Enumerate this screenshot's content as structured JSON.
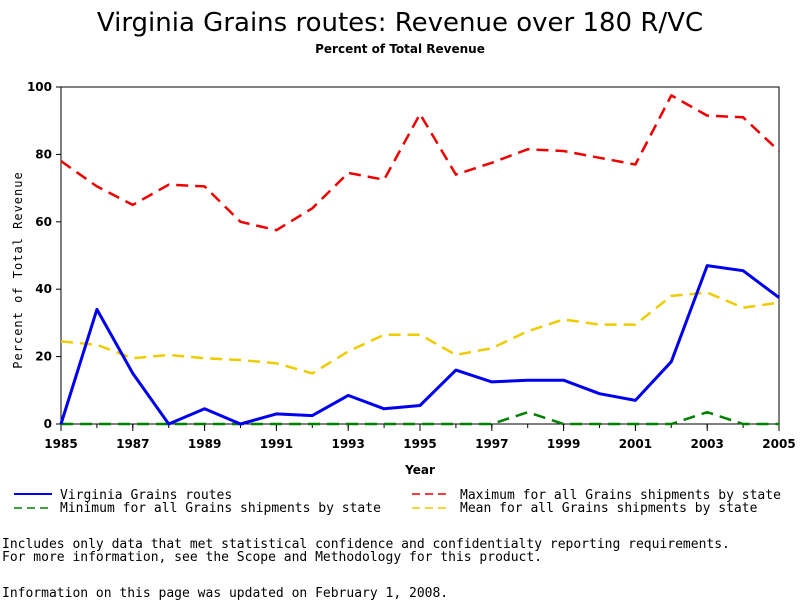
{
  "chart_data": {
    "type": "line",
    "title": "Virginia Grains routes: Revenue over 180 R/VC",
    "subtitle": "Percent of Total Revenue",
    "xlabel": "Year",
    "ylabel": "Percent of Total Revenue",
    "xlim": [
      1985,
      2005
    ],
    "ylim": [
      0,
      100
    ],
    "x": [
      1985,
      1986,
      1987,
      1988,
      1989,
      1990,
      1991,
      1992,
      1993,
      1994,
      1995,
      1996,
      1997,
      1998,
      1999,
      2000,
      2001,
      2002,
      2003,
      2004,
      2005
    ],
    "x_ticks": [
      "1985",
      "1987",
      "1989",
      "1991",
      "1993",
      "1995",
      "1997",
      "1999",
      "2001",
      "2003",
      "2005"
    ],
    "y_ticks": [
      "0",
      "20",
      "40",
      "60",
      "80",
      "100"
    ],
    "series": [
      {
        "name": "Virginia Grains routes",
        "color": "#0000ee",
        "style": "solid",
        "values": [
          0,
          34,
          15,
          0,
          4.5,
          0,
          3,
          2.5,
          8.5,
          4.5,
          5.5,
          16,
          12.5,
          13,
          13,
          9,
          7,
          18.5,
          47,
          45.5,
          37.5
        ]
      },
      {
        "name": "Maximum for all Grains shipments by state",
        "color": "#ee0000",
        "style": "dashed",
        "values": [
          78,
          70.5,
          65,
          71,
          70.5,
          60,
          57.5,
          64,
          74.5,
          72.5,
          92,
          74,
          77.5,
          81.5,
          81,
          79,
          77,
          97.5,
          91.5,
          91,
          81
        ]
      },
      {
        "name": "Minimum for all Grains shipments by state",
        "color": "#008000",
        "style": "dashed",
        "values": [
          0,
          0,
          0,
          0,
          0,
          0,
          0,
          0,
          0,
          0,
          0,
          0,
          0,
          3.5,
          0,
          0,
          0,
          0,
          3.5,
          0,
          0
        ]
      },
      {
        "name": "Mean for all Grains shipments by state",
        "color": "#eecc00",
        "style": "dashed",
        "values": [
          24.5,
          23.5,
          19.5,
          20.5,
          19.5,
          19,
          18,
          15,
          21.5,
          26.5,
          26.5,
          20.5,
          22.5,
          27.5,
          31,
          29.5,
          29.5,
          38,
          39,
          34.5,
          36
        ]
      }
    ]
  },
  "notes": {
    "line1": "Includes only data that met statistical confidence and confidentialty reporting requirements.",
    "line2": "For more information, see the Scope and Methodology for this product.",
    "line3": "Information on this page was updated on February 1, 2008."
  }
}
